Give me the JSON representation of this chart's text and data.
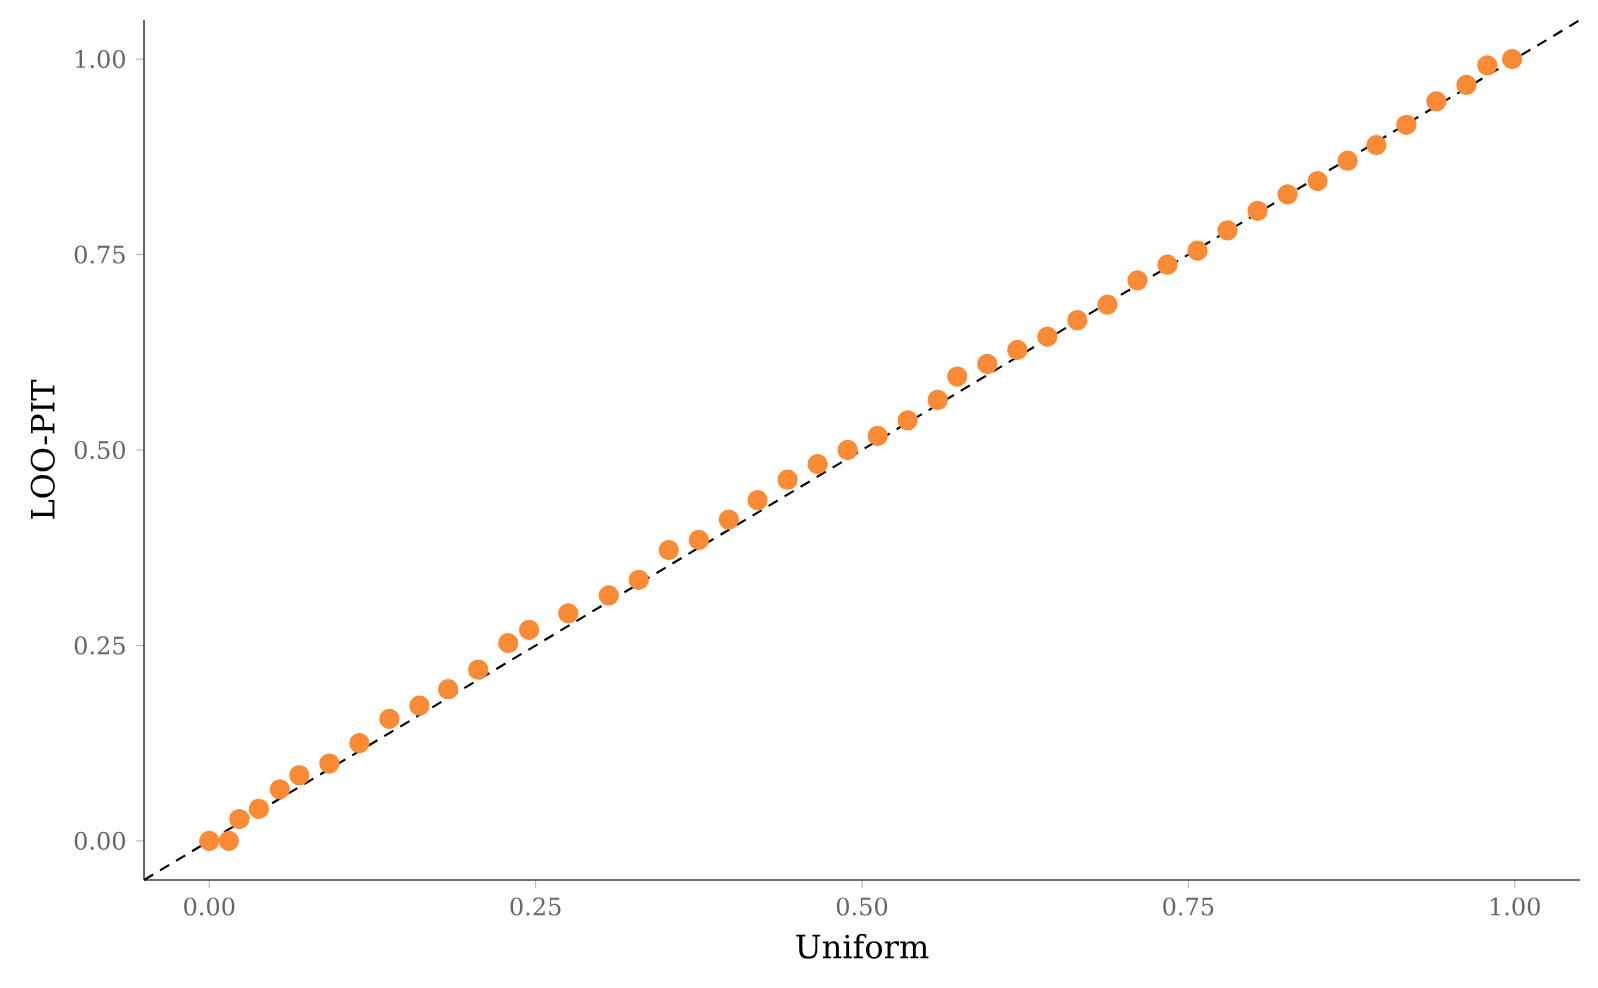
{
  "chart_data": {
    "type": "scatter",
    "xlabel": "Uniform",
    "ylabel": "LOO-PIT",
    "xlim": [
      -0.05,
      1.05
    ],
    "ylim": [
      -0.05,
      1.05
    ],
    "xticks": [
      {
        "value": 0,
        "label": "0.00"
      },
      {
        "value": 0.25,
        "label": "0.25"
      },
      {
        "value": 0.5,
        "label": "0.50"
      },
      {
        "value": 0.75,
        "label": "0.75"
      },
      {
        "value": 1,
        "label": "1.00"
      }
    ],
    "yticks": [
      {
        "value": 0,
        "label": "0.00"
      },
      {
        "value": 0.25,
        "label": "0.25"
      },
      {
        "value": 0.5,
        "label": "0.50"
      },
      {
        "value": 0.75,
        "label": "0.75"
      },
      {
        "value": 1,
        "label": "1.00"
      }
    ],
    "series": [
      {
        "color": "#f98b36",
        "marker": "circle",
        "x": [
          0,
          0.015,
          0.023,
          0.038,
          0.054,
          0.069,
          0.092,
          0.115,
          0.138,
          0.161,
          0.183,
          0.206,
          0.229,
          0.245,
          0.275,
          0.306,
          0.329,
          0.352,
          0.375,
          0.398,
          0.42,
          0.443,
          0.466,
          0.489,
          0.512,
          0.535,
          0.558,
          0.573,
          0.596,
          0.619,
          0.642,
          0.665,
          0.688,
          0.711,
          0.734,
          0.757,
          0.78,
          0.803,
          0.826,
          0.849,
          0.872,
          0.894,
          0.917,
          0.94,
          0.963,
          0.979,
          0.998
        ],
        "values": [
          0,
          0,
          0.028,
          0.041,
          0.066,
          0.084,
          0.099,
          0.125,
          0.156,
          0.173,
          0.194,
          0.219,
          0.253,
          0.27,
          0.291,
          0.314,
          0.334,
          0.372,
          0.385,
          0.411,
          0.436,
          0.462,
          0.482,
          0.5,
          0.518,
          0.538,
          0.564,
          0.594,
          0.61,
          0.628,
          0.645,
          0.666,
          0.686,
          0.717,
          0.737,
          0.755,
          0.781,
          0.806,
          0.827,
          0.844,
          0.87,
          0.89,
          0.916,
          0.946,
          0.967,
          0.992,
          1.0
        ]
      },
      {
        "type": "line",
        "color": "#000000",
        "line_style": "dashed",
        "marker": "none",
        "x": [
          -0.05,
          1.05
        ],
        "values": [
          -0.05,
          1.05
        ]
      }
    ]
  }
}
